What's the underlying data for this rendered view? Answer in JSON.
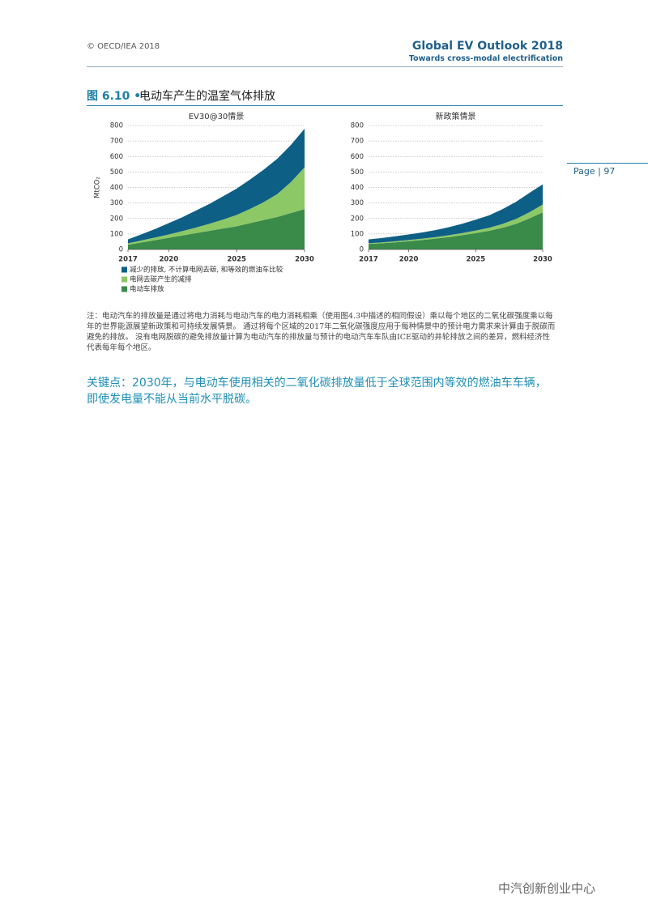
{
  "header": {
    "copyright": "© OECD/IEA 2018",
    "title": "Global EV Outlook 2018",
    "subtitle": "Towards cross-modal electrification",
    "page": "Page | 97"
  },
  "figure": {
    "label": "图 6.10 •",
    "title": "电动车产生的温室气体排放"
  },
  "chart_data": [
    {
      "type": "area",
      "stacked": true,
      "title": "EV30@30情景",
      "y_label": "MtCO₂",
      "x": [
        2017,
        2018,
        2019,
        2020,
        2021,
        2022,
        2023,
        2024,
        2025,
        2026,
        2027,
        2028,
        2029,
        2030
      ],
      "xlim": [
        2017,
        2030
      ],
      "xticks": [
        2017,
        2020,
        2025,
        2030
      ],
      "ylim": [
        0,
        800
      ],
      "yticks": [
        0,
        100,
        200,
        300,
        400,
        500,
        600,
        700,
        800
      ],
      "grid": true,
      "series": [
        {
          "name": "电动车排放",
          "color": "#3a8a4a",
          "values": [
            30,
            45,
            60,
            75,
            90,
            105,
            120,
            135,
            150,
            170,
            190,
            210,
            235,
            260
          ]
        },
        {
          "name": "电网去碳产生的减排",
          "color": "#8cc866",
          "values": [
            10,
            13,
            17,
            22,
            28,
            36,
            46,
            58,
            73,
            92,
            116,
            148,
            200,
            270
          ]
        },
        {
          "name": "减少的排放, 不计算电网去碳, 和等效的燃油车比较",
          "color": "#0e5f86",
          "values": [
            25,
            40,
            55,
            73,
            90,
            110,
            128,
            150,
            170,
            190,
            210,
            228,
            240,
            250
          ]
        }
      ]
    },
    {
      "type": "area",
      "stacked": true,
      "title": "新政策情景",
      "x": [
        2017,
        2018,
        2019,
        2020,
        2021,
        2022,
        2023,
        2024,
        2025,
        2026,
        2027,
        2028,
        2029,
        2030
      ],
      "xlim": [
        2017,
        2030
      ],
      "xticks": [
        2017,
        2020,
        2025,
        2030
      ],
      "ylim": [
        0,
        800
      ],
      "yticks": [
        0,
        100,
        200,
        300,
        400,
        500,
        600,
        700,
        800
      ],
      "grid": true,
      "series": [
        {
          "color": "#3a8a4a",
          "values": [
            35,
            40,
            46,
            53,
            61,
            70,
            80,
            92,
            105,
            120,
            140,
            165,
            200,
            240
          ]
        },
        {
          "color": "#8cc866",
          "values": [
            5,
            6,
            7,
            8,
            9,
            10,
            12,
            14,
            17,
            20,
            25,
            32,
            40,
            50
          ]
        },
        {
          "color": "#0e5f86",
          "values": [
            25,
            28,
            32,
            36,
            40,
            45,
            52,
            60,
            70,
            80,
            95,
            110,
            125,
            130
          ]
        }
      ]
    }
  ],
  "note": "注：电动汽车的排放量是通过将电力消耗与电动汽车的电力消耗相乘（使用图4.3中描述的相同假设）乘以每个地区的二氧化碳强度乘以每年的世界能源展望新政策和可持续发展情景。 通过将每个区域的2017年二氧化碳强度应用于每种情景中的预计电力需求来计算由于脱碳而避免的排放。 没有电网脱碳的避免排放量计算为电动汽车的排放量与预计的电动汽车车队由ICE驱动的井轮排放之间的差异，燃料经济性代表每年每个地区。",
  "key_point": "关键点：2030年，与电动车使用相关的二氧化碳排放量低于全球范围内等效的燃油车车辆，即使发电量不能从当前水平脱碳。",
  "watermark": "中汽创新创业中心"
}
